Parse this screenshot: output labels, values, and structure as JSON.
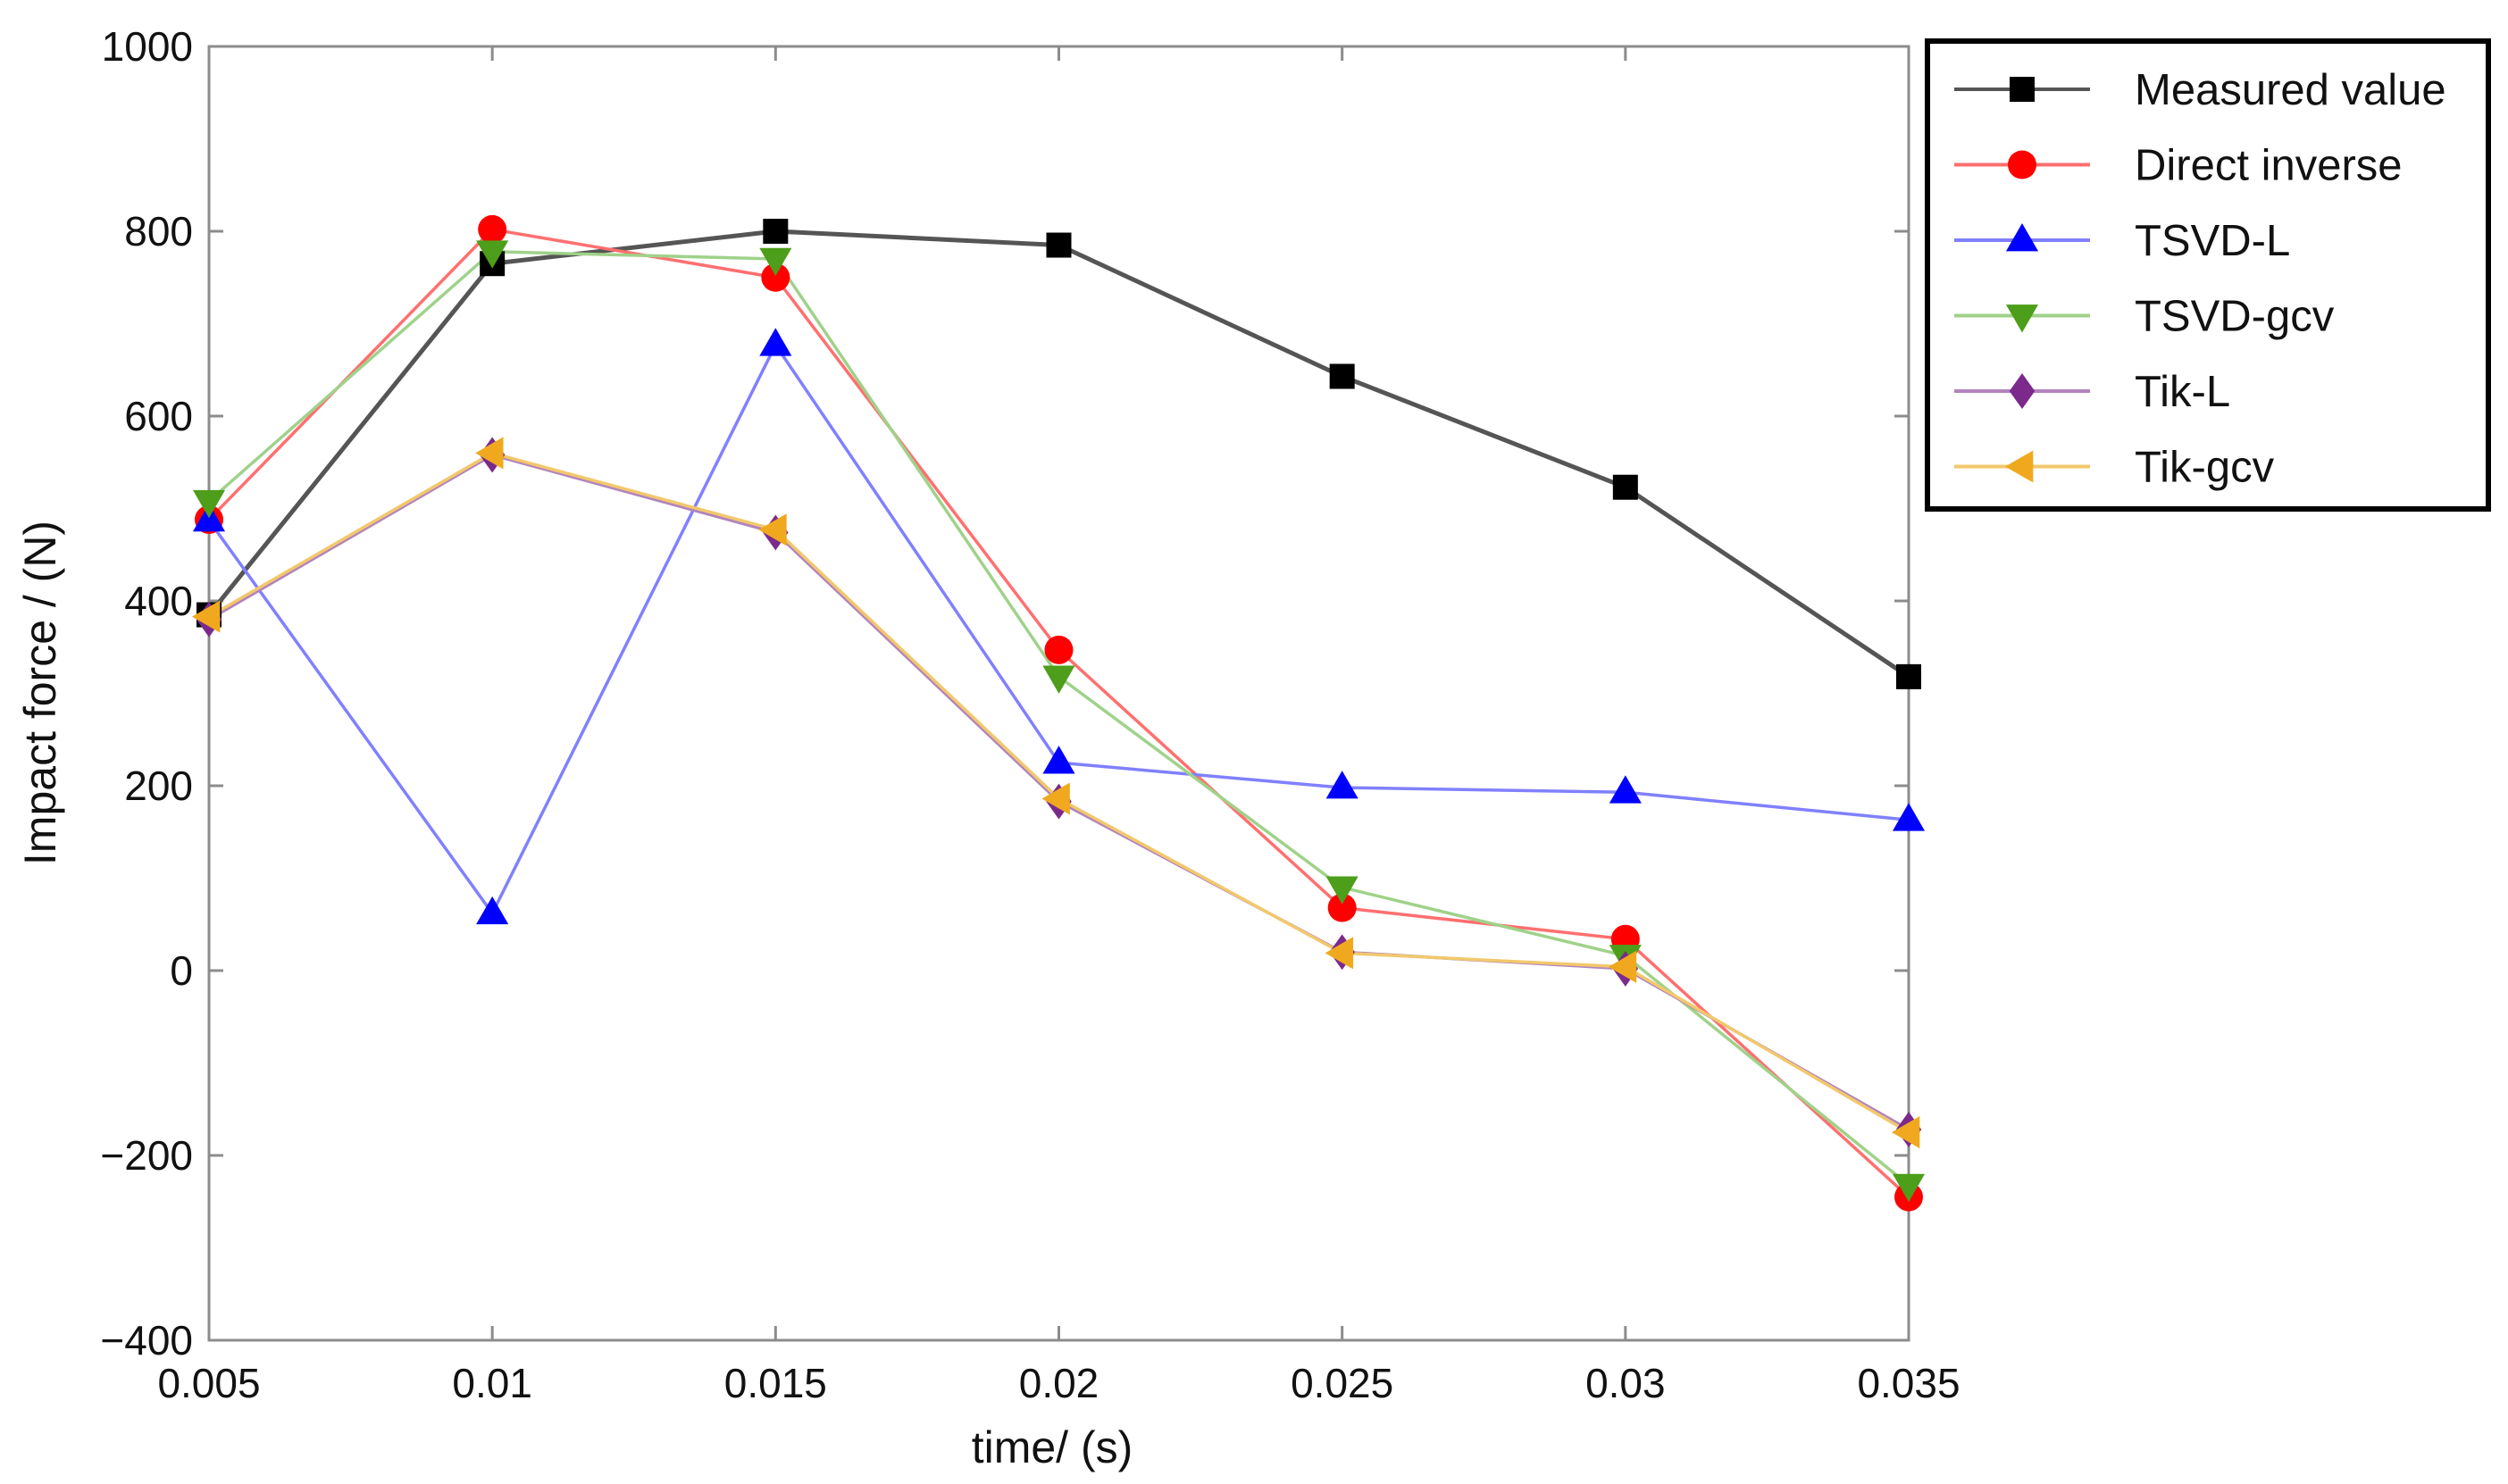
{
  "chart_data": {
    "type": "line",
    "title": "",
    "xlabel": "time/ (s)",
    "ylabel": "Impact force / (N)",
    "x": [
      0.005,
      0.01,
      0.015,
      0.02,
      0.025,
      0.03,
      0.035
    ],
    "x_tick_labels": [
      "0.005",
      "0.01",
      "0.015",
      "0.02",
      "0.025",
      "0.03",
      "0.035"
    ],
    "xlim": [
      0.005,
      0.035
    ],
    "ylim": [
      -400,
      1000
    ],
    "y_ticks": [
      -400,
      -200,
      0,
      200,
      400,
      600,
      800,
      1000
    ],
    "y_tick_labels": [
      "−400",
      "−200",
      "0",
      "200",
      "400",
      "600",
      "800",
      "1000"
    ],
    "grid": false,
    "legend_position": "outside-top-right",
    "series": [
      {
        "name": "Measured value",
        "color": "#000000",
        "line_color": "#555555",
        "marker": "square",
        "values": [
          385,
          765,
          800,
          785,
          643,
          523,
          318
        ]
      },
      {
        "name": "Direct inverse",
        "color": "#ff0000",
        "line_color": "#ff6f6f",
        "marker": "circle",
        "values": [
          488,
          802,
          750,
          347,
          68,
          34,
          -245
        ]
      },
      {
        "name": "TSVD-L",
        "color": "#0000ff",
        "line_color": "#8080ff",
        "marker": "triangle-up",
        "values": [
          487,
          62,
          677,
          225,
          198,
          193,
          163
        ]
      },
      {
        "name": "TSVD-gcv",
        "color": "#4d9e1a",
        "line_color": "#9fd28a",
        "marker": "triangle-down",
        "values": [
          508,
          778,
          770,
          318,
          90,
          16,
          -232
        ]
      },
      {
        "name": "Tik-L",
        "color": "#7b2a8c",
        "line_color": "#b283bd",
        "marker": "diamond",
        "values": [
          380,
          558,
          474,
          183,
          20,
          2,
          -172
        ]
      },
      {
        "name": "Tik-gcv",
        "color": "#f0a91e",
        "line_color": "#f2c86c",
        "marker": "triangle-left",
        "values": [
          383,
          560,
          477,
          186,
          19,
          4,
          -175
        ]
      }
    ]
  }
}
